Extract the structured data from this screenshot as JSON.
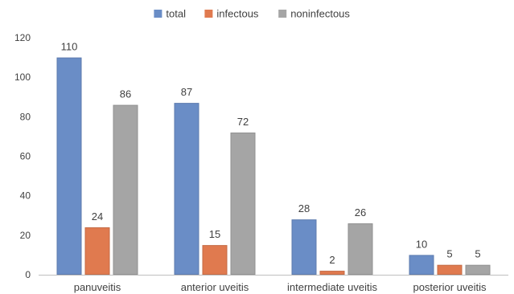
{
  "chart_data": {
    "type": "bar",
    "categories": [
      "panuveitis",
      "anterior uveitis",
      "intermediate uveitis",
      "posterior uveitis"
    ],
    "series": [
      {
        "name": "total",
        "values": [
          110,
          87,
          28,
          10
        ],
        "color": "#6A8DC6"
      },
      {
        "name": "infectous",
        "values": [
          24,
          15,
          2,
          5
        ],
        "color": "#E07A4F"
      },
      {
        "name": "noninfectous",
        "values": [
          86,
          72,
          26,
          5
        ],
        "color": "#A5A5A5"
      }
    ],
    "ylim": [
      0,
      120
    ],
    "yticks": [
      "0",
      "20",
      "40",
      "60",
      "80",
      "100",
      "120"
    ],
    "data_labels": true,
    "grid": false,
    "legend": "top-center",
    "colors": {
      "axis": "#BFBFBF",
      "text": "#404040"
    }
  }
}
